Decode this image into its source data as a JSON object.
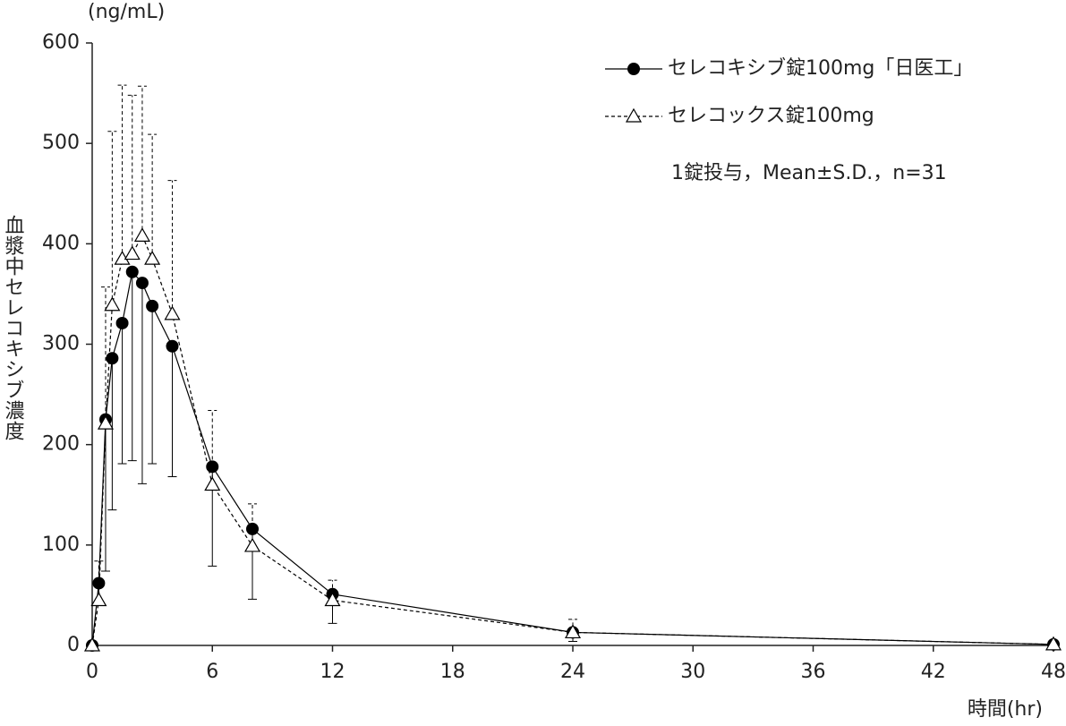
{
  "chart_data": {
    "type": "line",
    "unit_label": "(ng/mL)",
    "ylabel": "血漿中セレコキシブ濃度",
    "xlabel": "時間(hr)",
    "note": "1錠投与，Mean±S.D.，n=31",
    "x": [
      0,
      0.33,
      0.67,
      1,
      1.5,
      2,
      2.5,
      3,
      4,
      6,
      8,
      12,
      24,
      48
    ],
    "xlim": [
      0,
      48
    ],
    "xticks": [
      0,
      6,
      12,
      18,
      24,
      30,
      36,
      42,
      48
    ],
    "ylim": [
      0,
      600
    ],
    "yticks": [
      0,
      100,
      200,
      300,
      400,
      500,
      600
    ],
    "series": [
      {
        "name": "セレコキシブ錠100mg「日医工」",
        "color": "#000000",
        "marker": "circle",
        "line_style": "solid",
        "error_direction": "down",
        "values": [
          0,
          62,
          225,
          286,
          321,
          372,
          361,
          338,
          298,
          178,
          116,
          51,
          13,
          1
        ],
        "errors": [
          0,
          22,
          151,
          151,
          140,
          188,
          200,
          157,
          130,
          99,
          70,
          29,
          9,
          1
        ]
      },
      {
        "name": "セレコックス錠100mg",
        "color": "#000000",
        "marker": "triangle",
        "line_style": "dashed",
        "error_direction": "up",
        "values": [
          0,
          45,
          221,
          339,
          385,
          390,
          408,
          385,
          330,
          160,
          99,
          45,
          13,
          1
        ],
        "errors": [
          0,
          39,
          136,
          173,
          173,
          158,
          149,
          124,
          133,
          74,
          42,
          20,
          13,
          1
        ]
      }
    ]
  }
}
